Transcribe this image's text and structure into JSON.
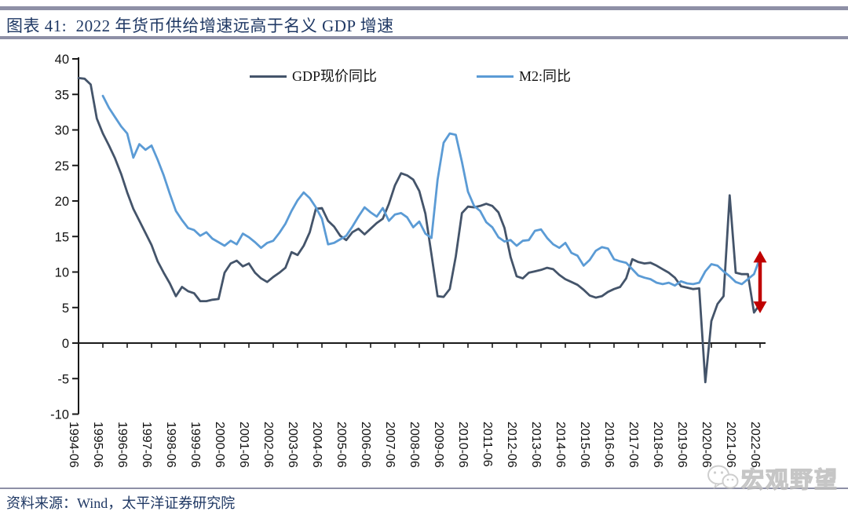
{
  "header": {
    "title": "图表 41:  2022 年货币供给增速远高于名义 GDP 增速",
    "rule_color": "#8e90a6",
    "title_color": "#1f3864"
  },
  "footer": {
    "source_label": "资料来源：Wind，太平洋证券研究院",
    "watermark_text": "宏观野望"
  },
  "chart_data": {
    "type": "line",
    "title": "",
    "xlabel": "",
    "ylabel": "",
    "grid": false,
    "legend_position": "top-center",
    "ylim": [
      -10,
      40
    ],
    "y_ticks": [
      40,
      35,
      30,
      25,
      20,
      15,
      10,
      5,
      0,
      -5,
      -10
    ],
    "x_tick_labels": [
      "1994-06",
      "1995-06",
      "1996-06",
      "1997-06",
      "1998-06",
      "1999-06",
      "2000-06",
      "2001-06",
      "2002-06",
      "2003-06",
      "2004-06",
      "2005-06",
      "2006-06",
      "2007-06",
      "2008-06",
      "2009-06",
      "2010-06",
      "2011-06",
      "2012-06",
      "2013-06",
      "2014-06",
      "2015-06",
      "2016-06",
      "2017-06",
      "2018-06",
      "2019-06",
      "2020-06",
      "2021-06",
      "2022-06"
    ],
    "x_range_years": [
      1994.5,
      2022.5
    ],
    "axis_color": "#1a1a1a",
    "series": [
      {
        "name": "GDP现价同比",
        "color": "#44546a",
        "start_year": 1994.5,
        "step_years": 0.25,
        "values": [
          37.3,
          37.2,
          36.4,
          31.6,
          29.5,
          27.8,
          26.0,
          23.8,
          21.2,
          18.9,
          17.2,
          15.5,
          13.8,
          11.5,
          9.9,
          8.4,
          6.6,
          7.9,
          7.3,
          7.0,
          5.9,
          5.9,
          6.1,
          6.2,
          9.9,
          11.2,
          11.6,
          10.8,
          11.2,
          9.9,
          9.1,
          8.6,
          9.3,
          9.9,
          10.6,
          12.8,
          12.4,
          13.7,
          15.6,
          18.9,
          19.0,
          17.2,
          16.4,
          15.1,
          14.5,
          15.6,
          16.1,
          15.3,
          16.1,
          16.9,
          17.5,
          19.6,
          22.2,
          23.9,
          23.6,
          23.0,
          21.4,
          18.2,
          12.5,
          6.6,
          6.5,
          7.6,
          12.2,
          18.3,
          19.2,
          19.1,
          19.3,
          19.6,
          19.3,
          18.4,
          16.2,
          12.1,
          9.4,
          9.1,
          9.9,
          10.1,
          10.3,
          10.6,
          10.4,
          9.6,
          9.0,
          8.6,
          8.2,
          7.5,
          6.7,
          6.4,
          6.6,
          7.2,
          7.6,
          7.9,
          9.1,
          11.8,
          11.4,
          11.2,
          11.3,
          10.9,
          10.4,
          9.9,
          9.2,
          8.0,
          7.8,
          7.6,
          7.7,
          -5.5,
          3.1,
          5.5,
          6.6,
          20.8,
          9.9,
          9.7,
          9.7,
          4.3,
          5.5
        ]
      },
      {
        "name": "M2:同比",
        "color": "#5b9bd5",
        "start_year": 1995.5,
        "step_years": 0.25,
        "values": [
          34.8,
          33.1,
          31.8,
          30.5,
          29.5,
          26.1,
          28.0,
          27.2,
          27.8,
          25.8,
          23.6,
          21.0,
          18.6,
          17.3,
          16.2,
          15.9,
          15.1,
          15.6,
          14.7,
          14.2,
          13.7,
          14.4,
          13.9,
          15.4,
          14.9,
          14.2,
          13.4,
          14.1,
          14.4,
          15.5,
          16.8,
          18.6,
          20.1,
          21.2,
          20.4,
          19.1,
          17.5,
          13.9,
          14.1,
          14.6,
          15.1,
          16.4,
          17.8,
          19.1,
          18.4,
          17.8,
          19.0,
          17.2,
          18.1,
          18.3,
          17.7,
          16.3,
          17.1,
          15.4,
          14.8,
          23.0,
          28.2,
          29.5,
          29.3,
          25.5,
          21.3,
          19.3,
          18.6,
          17.0,
          16.3,
          14.9,
          14.3,
          14.5,
          13.7,
          14.4,
          14.5,
          15.8,
          16.0,
          14.8,
          13.9,
          13.4,
          14.1,
          12.7,
          12.3,
          10.9,
          11.7,
          13.0,
          13.5,
          13.3,
          11.8,
          11.5,
          11.3,
          10.4,
          9.5,
          9.2,
          9.0,
          8.5,
          8.3,
          8.5,
          8.1,
          8.7,
          8.4,
          8.3,
          8.5,
          10.1,
          11.1,
          10.9,
          10.1,
          9.4,
          8.6,
          8.3,
          9.0,
          9.7,
          12.0
        ]
      }
    ],
    "annotation_arrow": {
      "x_year": 2022.5,
      "y_top": 13.0,
      "y_bottom": 4.2,
      "color": "#c00000"
    }
  }
}
